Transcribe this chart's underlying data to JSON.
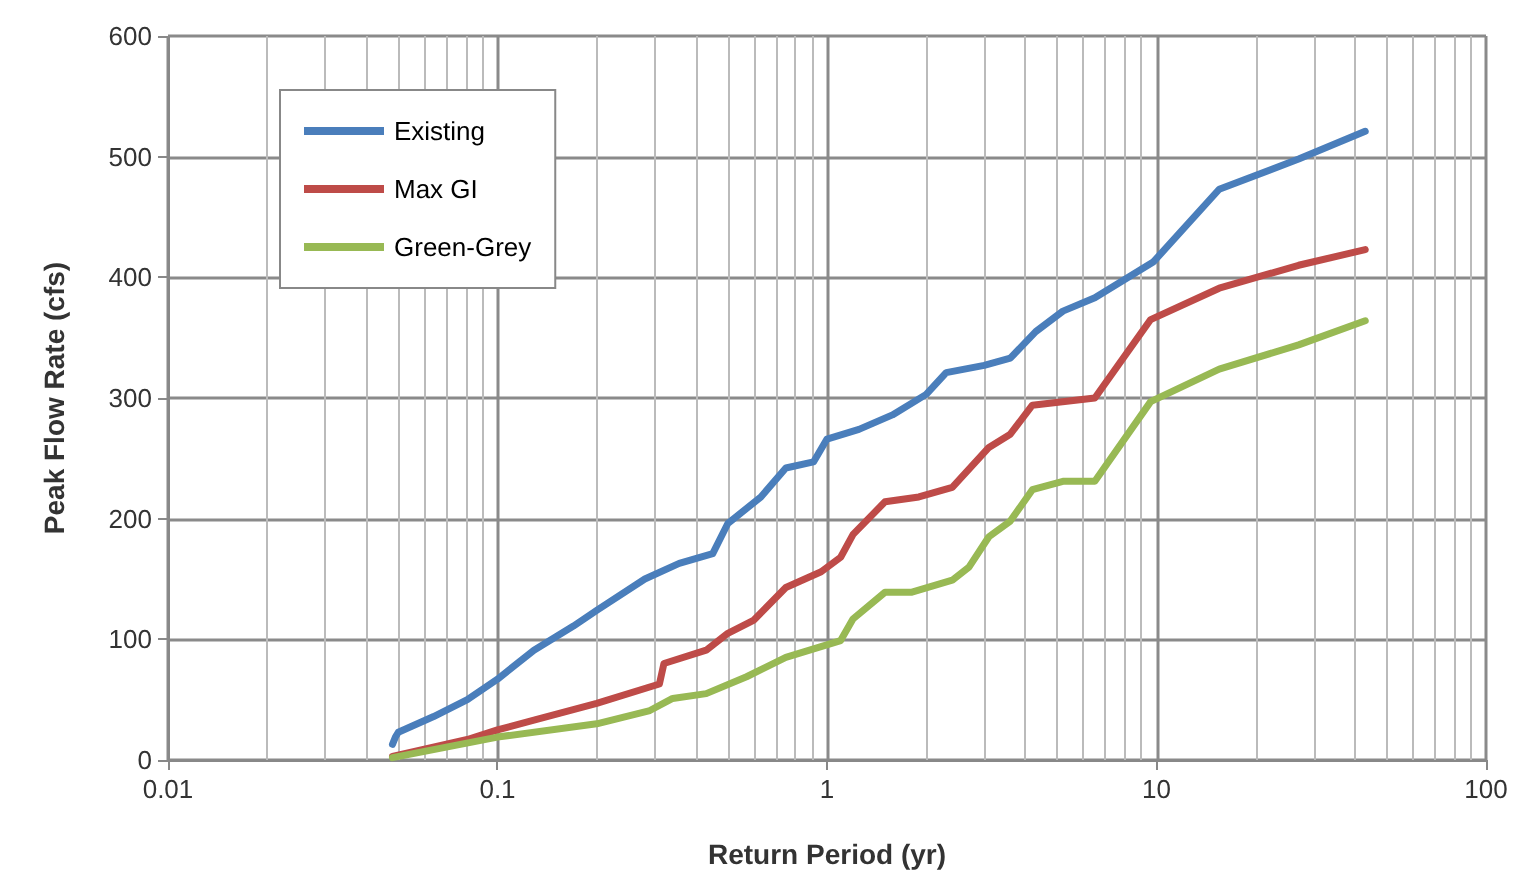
{
  "chart_data": {
    "type": "line",
    "xlabel": "Return Period (yr)",
    "ylabel": "Peak Flow Rate (cfs)",
    "xlim": [
      0.01,
      100
    ],
    "xticks": [
      0.01,
      0.1,
      1,
      10,
      100
    ],
    "ylim": [
      0,
      600
    ],
    "yticks": [
      0,
      100,
      200,
      300,
      400,
      500,
      600
    ],
    "log": "x",
    "grid": true,
    "legend": "top left",
    "marker": "none",
    "line_style": "solid",
    "series": [
      {
        "name": "Existing",
        "color": "#4a7ebb",
        "x": [
          0.048,
          0.049,
          0.05,
          0.064,
          0.081,
          0.1,
          0.129,
          0.17,
          0.2,
          0.28,
          0.356,
          0.45,
          0.5,
          0.63,
          0.75,
          0.91,
          1.0,
          1.25,
          1.58,
          2.0,
          2.3,
          3.0,
          3.6,
          4.3,
          5.2,
          6.5,
          9.8,
          15.5,
          27,
          43
        ],
        "values": [
          13,
          19,
          23,
          36,
          50,
          67,
          91,
          111,
          124,
          150,
          163,
          171,
          196,
          218,
          242,
          247,
          266,
          274,
          286,
          303,
          321,
          327,
          333,
          355,
          372,
          383,
          413,
          473,
          498,
          521
        ]
      },
      {
        "name": "Max GI",
        "color": "#be4b48",
        "x": [
          0.048,
          0.081,
          0.1,
          0.129,
          0.2,
          0.31,
          0.32,
          0.43,
          0.5,
          0.6,
          0.75,
          0.96,
          1.1,
          1.2,
          1.5,
          1.9,
          2.4,
          3.1,
          3.6,
          4.2,
          6.5,
          9.6,
          15.5,
          27,
          43
        ],
        "values": [
          3,
          17,
          25,
          33,
          47,
          63,
          80,
          91,
          105,
          116,
          143,
          156,
          168,
          187,
          214,
          218,
          226,
          259,
          270,
          294,
          300,
          365,
          391,
          410,
          423
        ]
      },
      {
        "name": "Green-Grey",
        "color": "#98b954",
        "x": [
          0.048,
          0.1,
          0.2,
          0.29,
          0.34,
          0.43,
          0.57,
          0.75,
          1.1,
          1.2,
          1.5,
          1.8,
          2.4,
          2.7,
          3.1,
          3.6,
          4.2,
          5.2,
          6.5,
          9.6,
          15.5,
          27,
          43
        ],
        "values": [
          2,
          19,
          30,
          41,
          51,
          55,
          69,
          85,
          99,
          117,
          139,
          139,
          149,
          160,
          185,
          198,
          224,
          231,
          231,
          297,
          324,
          344,
          364
        ]
      }
    ]
  }
}
